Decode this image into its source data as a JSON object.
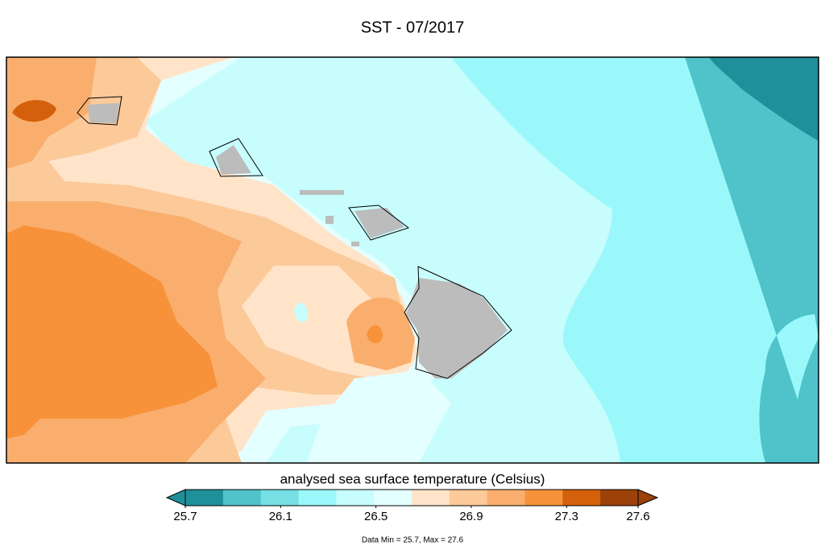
{
  "title": "SST - 07/2017",
  "colorbar": {
    "label": "analysed sea surface temperature (Celsius)",
    "lim": [
      25.7,
      27.6
    ],
    "ticks": [
      25.7,
      26.1,
      26.5,
      26.9,
      27.3,
      27.6
    ],
    "colors": [
      "#1f9099",
      "#4fc3c9",
      "#76dfe3",
      "#9af8fb",
      "#c8fdfd",
      "#e4ffff",
      "#ffe4ca",
      "#fcc999",
      "#f9ae6d",
      "#f7923a",
      "#d4600b",
      "#9c4109"
    ],
    "under_color": "#1f9099",
    "over_color": "#9c4109"
  },
  "footer": "Data Min = 25.7, Max = 27.6"
}
